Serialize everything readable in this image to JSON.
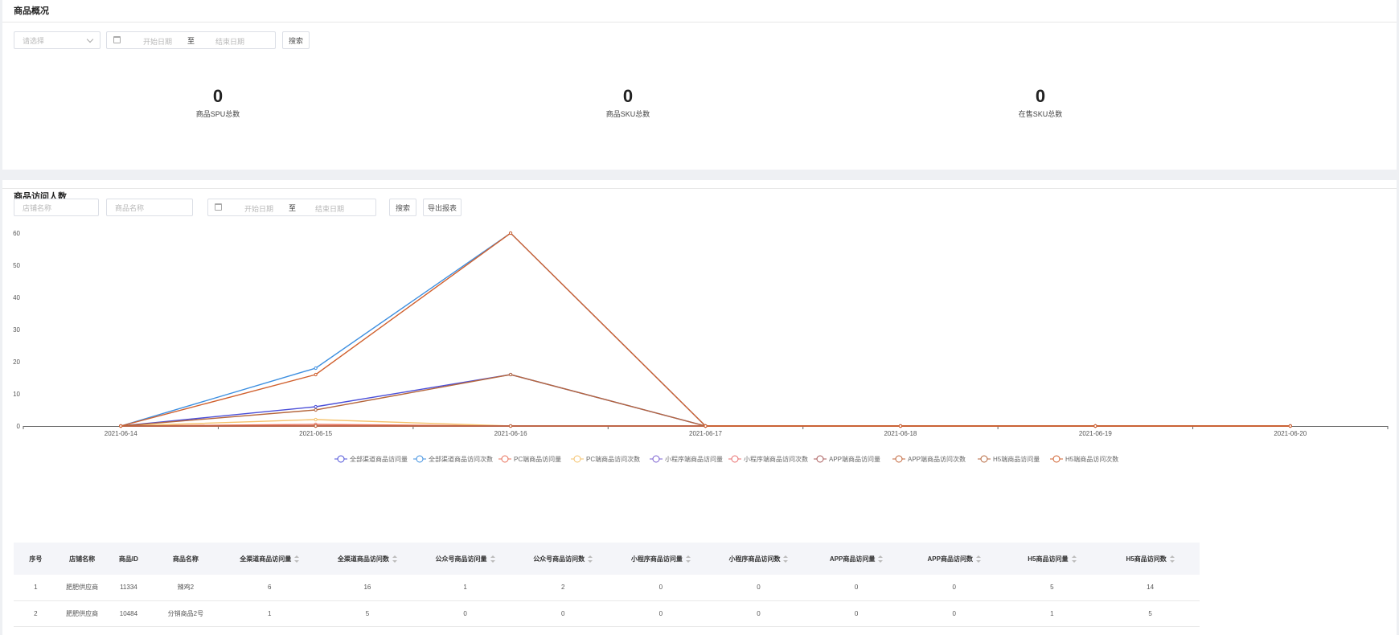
{
  "overview": {
    "title": "商品概况",
    "select_placeholder": "请选择",
    "start_placeholder": "开始日期",
    "range_sep": "至",
    "end_placeholder": "结束日期",
    "search_label": "搜索",
    "stats": [
      {
        "value": "0",
        "label": "商品SPU总数"
      },
      {
        "value": "0",
        "label": "商品SKU总数"
      },
      {
        "value": "0",
        "label": "在售SKU总数"
      }
    ]
  },
  "visits": {
    "title": "商品访问人数",
    "shop_placeholder": "店铺名称",
    "product_placeholder": "商品名称",
    "start_placeholder": "开始日期",
    "range_sep": "至",
    "end_placeholder": "结束日期",
    "search_label": "搜索",
    "export_label": "导出报表"
  },
  "chart_data": {
    "type": "line",
    "x": [
      "2021-06-14",
      "2021-06-15",
      "2021-06-16",
      "2021-06-17",
      "2021-06-18",
      "2021-06-19",
      "2021-06-20"
    ],
    "ylim": [
      0,
      60
    ],
    "yticks": [
      0,
      10,
      20,
      30,
      40,
      50,
      60
    ],
    "grid": false,
    "legend_position": "bottom",
    "series": [
      {
        "name": "全部渠道商品访问量",
        "color": "#4b4fd8",
        "values": [
          0,
          6,
          16,
          0,
          0,
          0,
          0
        ]
      },
      {
        "name": "全部渠道商品访问次数",
        "color": "#3d8fe0",
        "values": [
          0,
          18,
          60,
          0,
          0,
          0,
          0
        ]
      },
      {
        "name": "PC端商品访问量",
        "color": "#e8705a",
        "values": [
          0,
          0.5,
          0,
          0,
          0,
          0,
          0
        ]
      },
      {
        "name": "PC端商品访问次数",
        "color": "#f5c26b",
        "values": [
          0,
          2,
          0,
          0,
          0,
          0,
          0
        ]
      },
      {
        "name": "小程序端商品访问量",
        "color": "#7a5fd0",
        "values": [
          0,
          0,
          0,
          0,
          0,
          0,
          0
        ]
      },
      {
        "name": "小程序端商品访问次数",
        "color": "#e86e6e",
        "values": [
          0,
          0,
          0,
          0,
          0,
          0,
          0
        ]
      },
      {
        "name": "APP端商品访问量",
        "color": "#a85a5a",
        "values": [
          0,
          0,
          0,
          0,
          0,
          0,
          0
        ]
      },
      {
        "name": "APP端商品访问次数",
        "color": "#c0653a",
        "values": [
          0,
          0,
          0,
          0,
          0,
          0,
          0
        ]
      },
      {
        "name": "H5端商品访问量",
        "color": "#b5663c",
        "values": [
          0,
          5,
          16,
          0,
          0,
          0,
          0
        ]
      },
      {
        "name": "H5端商品访问次数",
        "color": "#d0602e",
        "values": [
          0,
          16,
          60,
          0,
          0,
          0,
          0
        ]
      }
    ]
  },
  "table": {
    "columns": [
      {
        "label": "序号",
        "sortable": false
      },
      {
        "label": "店铺名称",
        "sortable": false
      },
      {
        "label": "商品ID",
        "sortable": false
      },
      {
        "label": "商品名称",
        "sortable": false
      },
      {
        "label": "全渠道商品访问量",
        "sortable": true
      },
      {
        "label": "全渠道商品访问数",
        "sortable": true
      },
      {
        "label": "公众号商品访问量",
        "sortable": true
      },
      {
        "label": "公众号商品访问数",
        "sortable": true
      },
      {
        "label": "小程序商品访问量",
        "sortable": true
      },
      {
        "label": "小程序商品访问数",
        "sortable": true
      },
      {
        "label": "APP商品访问量",
        "sortable": true
      },
      {
        "label": "APP商品访问数",
        "sortable": true
      },
      {
        "label": "H5商品访问量",
        "sortable": true
      },
      {
        "label": "H5商品访问数",
        "sortable": true
      }
    ],
    "rows": [
      [
        "1",
        "肥肥供应商",
        "11334",
        "辣鸡2",
        "6",
        "16",
        "1",
        "2",
        "0",
        "0",
        "0",
        "0",
        "5",
        "14"
      ],
      [
        "2",
        "肥肥供应商",
        "10484",
        "分销商品2号",
        "1",
        "5",
        "0",
        "0",
        "0",
        "0",
        "0",
        "0",
        "1",
        "5"
      ]
    ]
  }
}
